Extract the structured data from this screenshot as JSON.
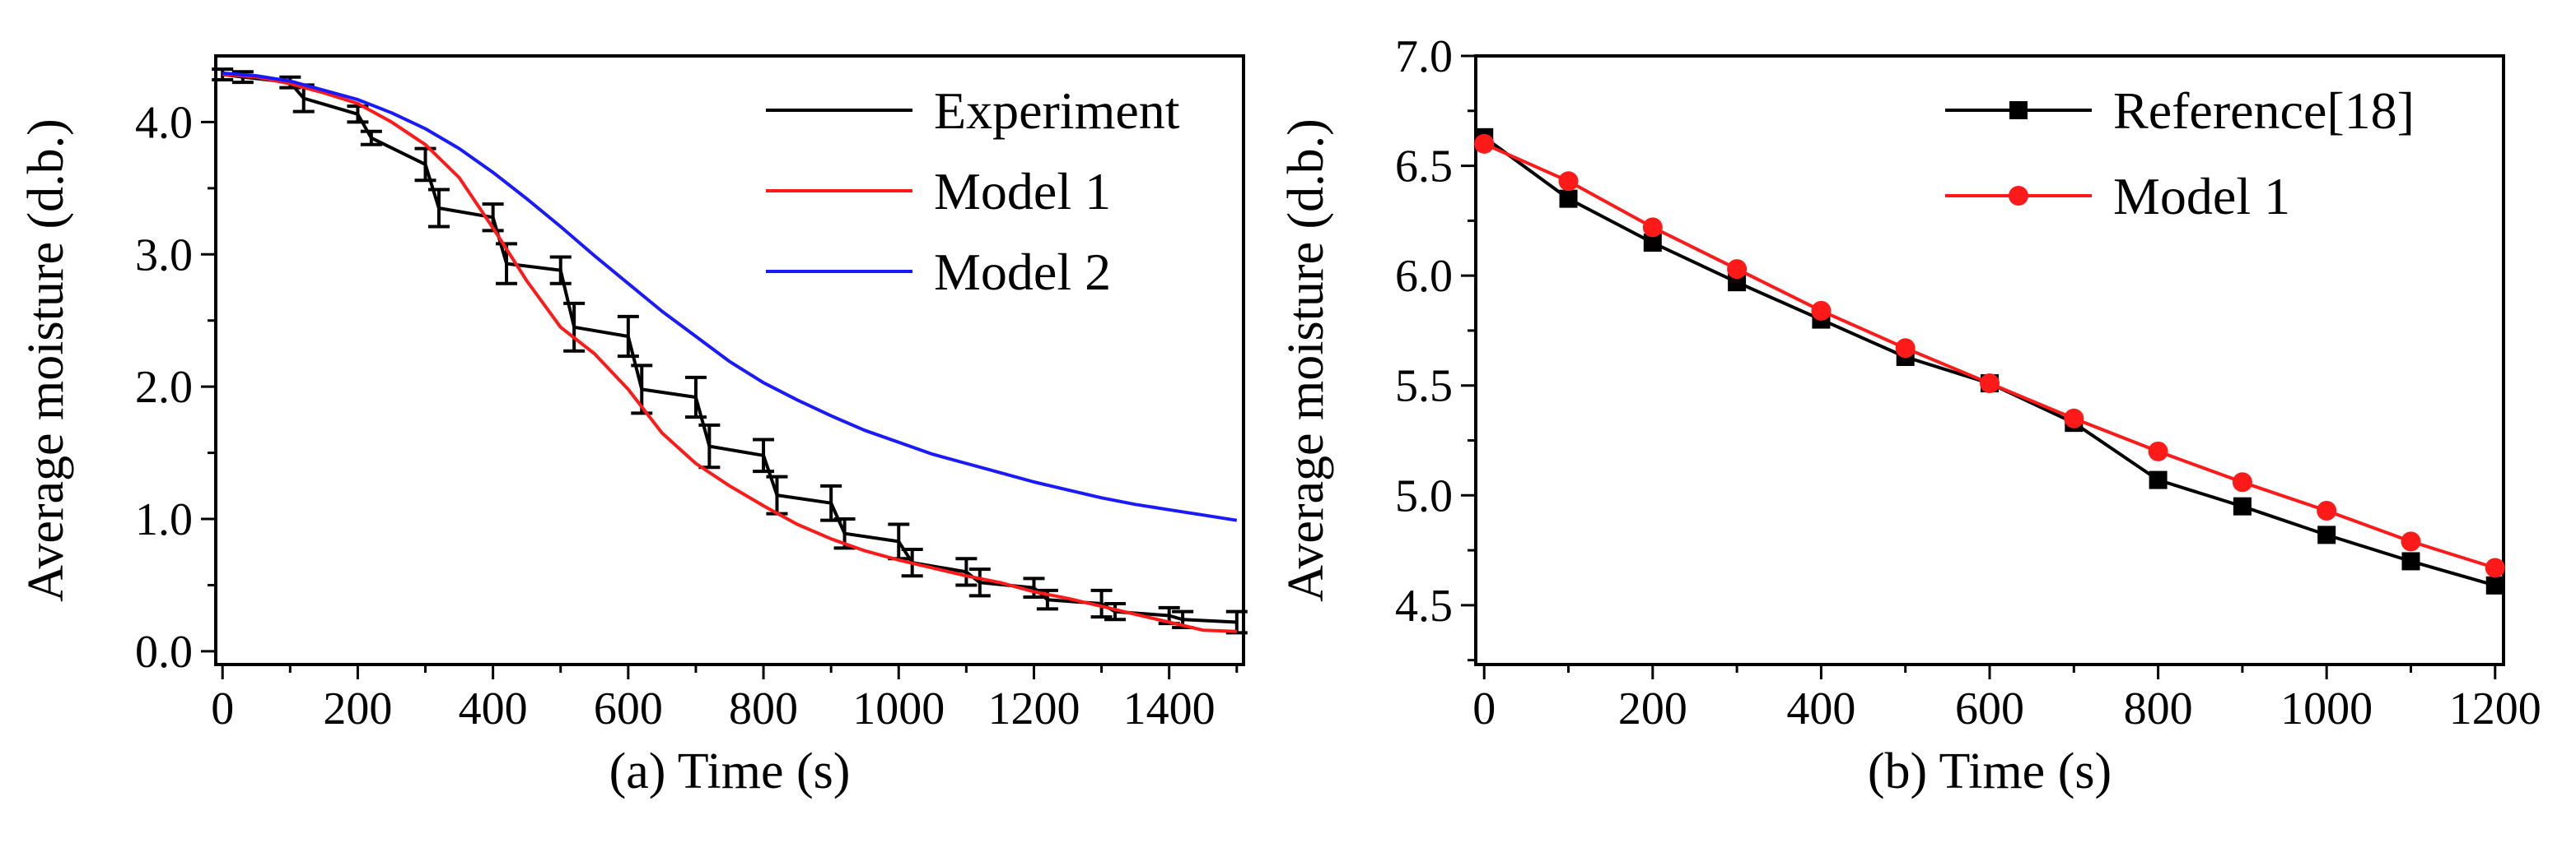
{
  "chart_data": [
    {
      "id": "a",
      "type": "line",
      "xlabel": "(a) Time (s)",
      "ylabel": "Average moisture (d.b.)",
      "xlim": [
        -10,
        1510
      ],
      "ylim": [
        -0.1,
        4.5
      ],
      "xticks": [
        "0",
        "200",
        "400",
        "600",
        "800",
        "1000",
        "1200",
        "1400"
      ],
      "xtick_values": [
        0,
        200,
        400,
        600,
        800,
        1000,
        1200,
        1400
      ],
      "yticks": [
        "0.0",
        "1.0",
        "2.0",
        "3.0",
        "4.0"
      ],
      "ytick_values": [
        0,
        1,
        2,
        3,
        4
      ],
      "legend_position": "top-right",
      "series": [
        {
          "name": "Experiment",
          "color": "#000000",
          "x": [
            0,
            30,
            100,
            120,
            200,
            220,
            300,
            320,
            400,
            420,
            500,
            520,
            600,
            620,
            700,
            720,
            800,
            820,
            900,
            920,
            1000,
            1020,
            1100,
            1120,
            1200,
            1220,
            1300,
            1320,
            1400,
            1420,
            1500
          ],
          "y": [
            4.36,
            4.34,
            4.3,
            4.18,
            4.06,
            3.88,
            3.68,
            3.35,
            3.28,
            2.93,
            2.88,
            2.45,
            2.38,
            1.98,
            1.92,
            1.55,
            1.48,
            1.18,
            1.12,
            0.89,
            0.83,
            0.67,
            0.6,
            0.52,
            0.48,
            0.39,
            0.36,
            0.3,
            0.27,
            0.24,
            0.22
          ],
          "error": [
            0.04,
            0.04,
            0.04,
            0.1,
            0.06,
            0.05,
            0.12,
            0.14,
            0.1,
            0.15,
            0.1,
            0.18,
            0.15,
            0.18,
            0.15,
            0.16,
            0.12,
            0.14,
            0.13,
            0.11,
            0.13,
            0.1,
            0.1,
            0.1,
            0.07,
            0.07,
            0.1,
            0.06,
            0.06,
            0.06,
            0.08
          ]
        },
        {
          "name": "Model 1",
          "color": "#ff1a1a",
          "x": [
            0,
            50,
            100,
            150,
            200,
            250,
            300,
            350,
            400,
            450,
            500,
            550,
            600,
            650,
            700,
            750,
            800,
            850,
            900,
            950,
            1000,
            1050,
            1100,
            1150,
            1200,
            1250,
            1300,
            1350,
            1400,
            1450,
            1500
          ],
          "y": [
            4.36,
            4.34,
            4.29,
            4.22,
            4.14,
            4.0,
            3.83,
            3.58,
            3.2,
            2.8,
            2.45,
            2.25,
            1.98,
            1.65,
            1.42,
            1.25,
            1.1,
            0.96,
            0.85,
            0.76,
            0.69,
            0.63,
            0.57,
            0.52,
            0.45,
            0.4,
            0.34,
            0.28,
            0.22,
            0.16,
            0.15
          ]
        },
        {
          "name": "Model 2",
          "color": "#1a1aff",
          "x": [
            0,
            50,
            100,
            150,
            200,
            250,
            300,
            350,
            400,
            450,
            500,
            550,
            600,
            650,
            700,
            750,
            800,
            850,
            900,
            950,
            1000,
            1050,
            1100,
            1150,
            1200,
            1250,
            1300,
            1350,
            1400,
            1450,
            1500
          ],
          "y": [
            4.37,
            4.35,
            4.31,
            4.24,
            4.17,
            4.07,
            3.95,
            3.8,
            3.62,
            3.42,
            3.21,
            2.99,
            2.78,
            2.57,
            2.38,
            2.19,
            2.03,
            1.9,
            1.78,
            1.67,
            1.58,
            1.49,
            1.42,
            1.35,
            1.28,
            1.22,
            1.16,
            1.11,
            1.07,
            1.03,
            0.99
          ]
        }
      ]
    },
    {
      "id": "b",
      "type": "line",
      "xlabel": "(b) Time (s)",
      "ylabel": "Average moisture (d.b.)",
      "xlim": [
        -10,
        1210
      ],
      "ylim": [
        4.23,
        7.0
      ],
      "xticks": [
        "0",
        "200",
        "400",
        "600",
        "800",
        "1000",
        "1200"
      ],
      "xtick_values": [
        0,
        200,
        400,
        600,
        800,
        1000,
        1200
      ],
      "yticks": [
        "4.5",
        "5.0",
        "5.5",
        "6.0",
        "6.5",
        "7.0"
      ],
      "ytick_values": [
        4.5,
        5.0,
        5.5,
        6.0,
        6.5,
        7.0
      ],
      "legend_position": "top-right",
      "series": [
        {
          "name": "Reference[18]",
          "color": "#000000",
          "marker": "square",
          "x": [
            0,
            100,
            200,
            300,
            400,
            500,
            600,
            700,
            800,
            900,
            1000,
            1100,
            1200
          ],
          "y": [
            6.63,
            6.35,
            6.15,
            5.97,
            5.8,
            5.63,
            5.51,
            5.33,
            5.07,
            4.95,
            4.82,
            4.7,
            4.59
          ]
        },
        {
          "name": "Model 1",
          "color": "#ff1a1a",
          "marker": "circle",
          "x": [
            0,
            100,
            200,
            300,
            400,
            500,
            600,
            700,
            800,
            900,
            1000,
            1100,
            1200
          ],
          "y": [
            6.6,
            6.43,
            6.22,
            6.03,
            5.84,
            5.67,
            5.51,
            5.35,
            5.2,
            5.06,
            4.93,
            4.79,
            4.67
          ]
        }
      ]
    }
  ]
}
